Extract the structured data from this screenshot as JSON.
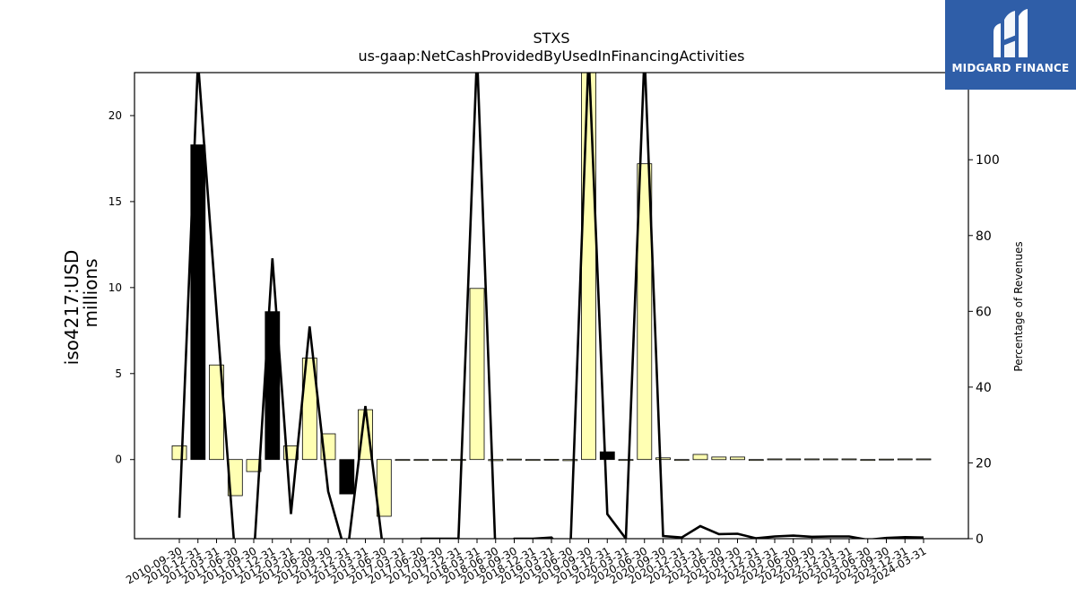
{
  "chart_data": {
    "type": "bar",
    "title": "STXS",
    "subtitle": "us-gaap:NetCashProvidedByUsedInFinancingActivities",
    "ylabel": "iso4217:USD\nmillions",
    "y2label": "Percentage of Revenues",
    "ylim": [
      -4.6,
      22.5
    ],
    "y2lim": [
      0,
      123
    ],
    "yticks": [
      0,
      5,
      10,
      15,
      20
    ],
    "y2ticks": [
      0,
      20,
      40,
      60,
      80,
      100
    ],
    "categories": [
      "2010-09-30",
      "2010-12-31",
      "2011-03-31",
      "2011-06-30",
      "2011-09-30",
      "2011-12-31",
      "2012-03-31",
      "2012-06-30",
      "2012-09-30",
      "2012-12-31",
      "2013-03-31",
      "2013-06-30",
      "2017-03-31",
      "2017-06-30",
      "2017-09-30",
      "2017-12-31",
      "2018-03-31",
      "2018-06-30",
      "2018-09-30",
      "2018-12-31",
      "2019-03-31",
      "2019-06-30",
      "2019-09-30",
      "2019-12-31",
      "2020-03-31",
      "2020-06-30",
      "2020-09-30",
      "2020-12-31",
      "2021-03-31",
      "2021-06-30",
      "2021-09-30",
      "2021-12-31",
      "2022-03-31",
      "2022-06-30",
      "2022-09-30",
      "2022-12-31",
      "2023-03-31",
      "2023-06-30",
      "2023-09-30",
      "2023-12-31",
      "2024-03-31"
    ],
    "series": [
      {
        "kind": "bar",
        "values": [
          0.8,
          18.3,
          5.5,
          -2.1,
          -0.7,
          8.6,
          0.8,
          5.9,
          1.5,
          -2.0,
          2.9,
          -3.3,
          -0.05,
          -0.03,
          -0.03,
          -0.03,
          9.95,
          -0.06,
          0.03,
          -0.03,
          0.02,
          -0.06,
          23.5,
          0.45,
          -0.03,
          17.2,
          0.1,
          -0.03,
          0.3,
          0.15,
          0.15,
          -0.03,
          0.04,
          0.04,
          0.04,
          0.04,
          0.04,
          -0.03,
          0.03,
          0.04,
          0.04
        ],
        "negative_flags": [
          false,
          true,
          false,
          false,
          false,
          true,
          false,
          false,
          false,
          true,
          false,
          false,
          false,
          false,
          false,
          false,
          false,
          false,
          false,
          false,
          false,
          false,
          false,
          true,
          false,
          false,
          false,
          false,
          false,
          false,
          false,
          false,
          false,
          false,
          false,
          false,
          false,
          false,
          false,
          false,
          false
        ]
      },
      {
        "kind": "line",
        "axis": "right",
        "values": [
          5.5,
          126,
          60,
          -5,
          -5,
          74,
          6.5,
          56,
          12.5,
          -5,
          35,
          -5,
          -5,
          0,
          0,
          0,
          128,
          -5,
          0,
          0,
          0.3,
          -5,
          128,
          6.5,
          0,
          128,
          0.7,
          0.3,
          3.3,
          1.2,
          1.3,
          0.1,
          0.6,
          0.8,
          0.5,
          0.6,
          0.6,
          -0.3,
          0.2,
          0.4,
          0.3
        ]
      }
    ],
    "colors": {
      "positive": "#ffffb3",
      "negative": "#000000",
      "line": "#000000"
    },
    "grid": false
  },
  "logo": {
    "text": "MIDGARD FINANCE",
    "icon": "midgard-logo-icon"
  }
}
